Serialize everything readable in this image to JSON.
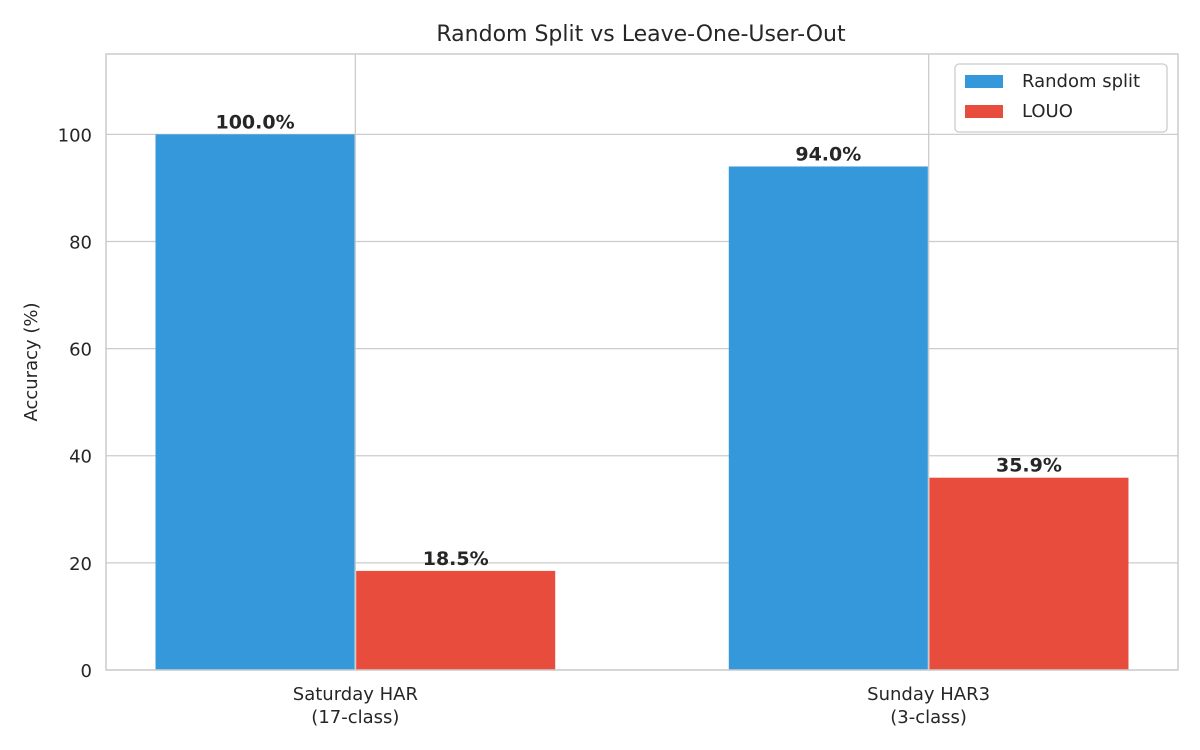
{
  "chart_data": {
    "type": "bar",
    "title": "Random Split vs Leave-One-User-Out",
    "xlabel": "",
    "ylabel": "Accuracy (%)",
    "ylim": [
      0,
      115
    ],
    "yticks": [
      0,
      20,
      40,
      60,
      80,
      100
    ],
    "categories": [
      [
        "Saturday HAR",
        "(17-class)"
      ],
      [
        "Sunday HAR3",
        "(3-class)"
      ]
    ],
    "series": [
      {
        "name": "Random split",
        "color": "#3498db",
        "values": [
          100.0,
          94.0
        ],
        "labels": [
          "100.0%",
          "94.0%"
        ]
      },
      {
        "name": "LOUO",
        "color": "#e74c3c",
        "values": [
          18.5,
          35.9
        ],
        "labels": [
          "18.5%",
          "35.9%"
        ]
      }
    ],
    "grid": true,
    "legend_position": "top-right"
  }
}
